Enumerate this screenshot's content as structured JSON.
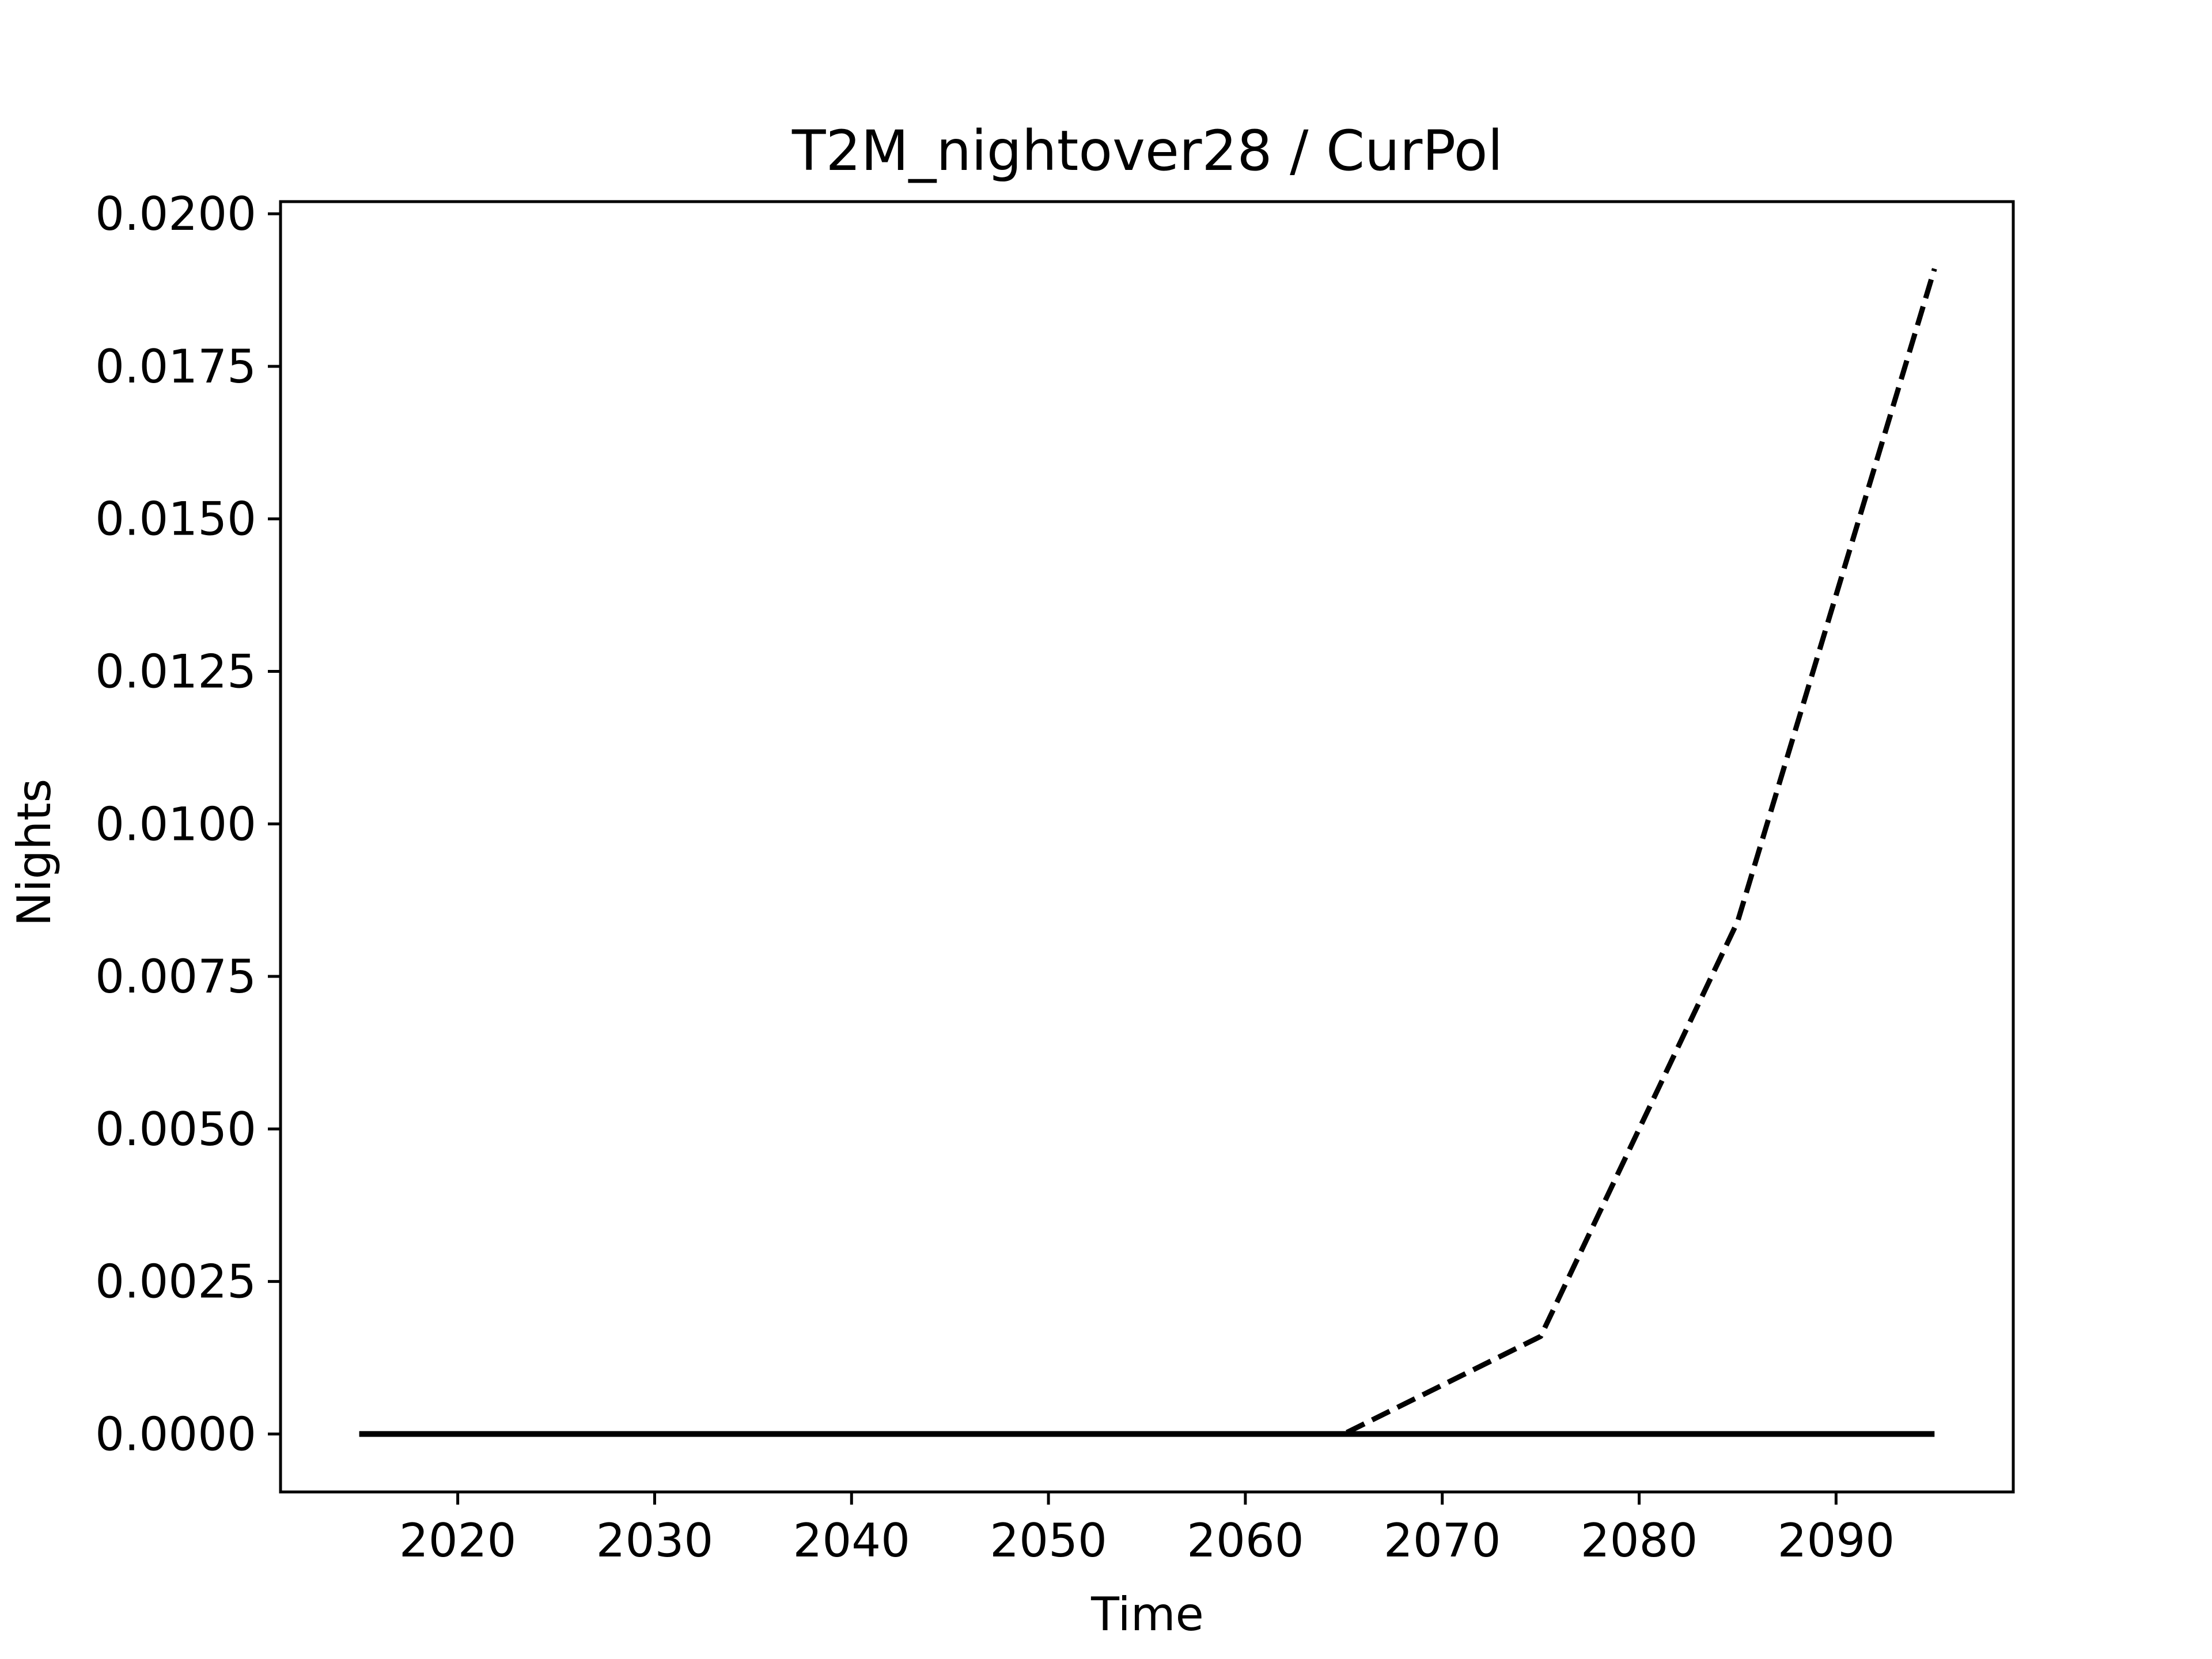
{
  "chart_data": {
    "type": "line",
    "title": "T2M_nightover28 / CurPol",
    "xlabel": "Time",
    "ylabel": "Nights",
    "xlim": [
      2011,
      2099
    ],
    "ylim": [
      -0.00095,
      0.0202
    ],
    "x_ticks": [
      2020,
      2030,
      2040,
      2050,
      2060,
      2070,
      2080,
      2090
    ],
    "y_ticks": [
      0.0,
      0.0025,
      0.005,
      0.0075,
      0.01,
      0.0125,
      0.015,
      0.0175,
      0.02
    ],
    "y_tick_labels": [
      "0.0000",
      "0.0025",
      "0.0050",
      "0.0075",
      "0.0100",
      "0.0125",
      "0.0150",
      "0.0175",
      "0.0200"
    ],
    "grid": false,
    "series": [
      {
        "style": "dashed",
        "color": "#000000",
        "x": [
          2015,
          2025,
          2035,
          2045,
          2055,
          2065,
          2075,
          2085,
          2095
        ],
        "y": [
          0.0,
          0.0,
          0.0,
          0.0,
          0.0,
          0.0,
          0.0016,
          0.0084,
          0.0191
        ]
      },
      {
        "style": "solid",
        "color": "#000000",
        "x": [
          2015,
          2025,
          2035,
          2045,
          2055,
          2065,
          2075,
          2085,
          2095
        ],
        "y": [
          0.0,
          0.0,
          0.0,
          0.0,
          0.0,
          0.0,
          0.0,
          0.0,
          0.0
        ]
      }
    ]
  }
}
